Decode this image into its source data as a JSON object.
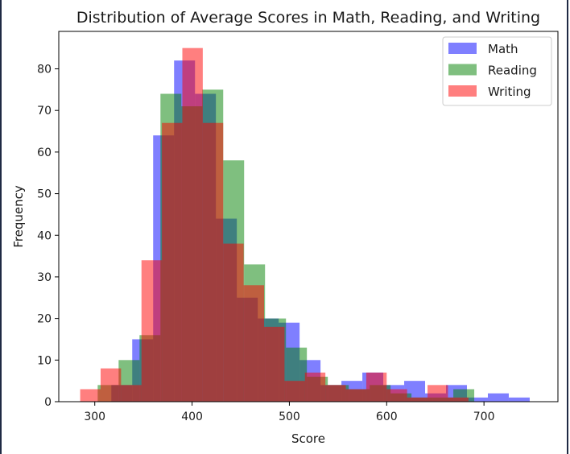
{
  "chart_data": {
    "type": "histogram",
    "title": "Distribution of Average Scores in Math, Reading, and Writing",
    "xlabel": "Score",
    "ylabel": "Frequency",
    "xlim": [
      263,
      776
    ],
    "ylim": [
      0,
      89
    ],
    "xticks": [
      300,
      400,
      500,
      600,
      700
    ],
    "yticks": [
      0,
      10,
      20,
      30,
      40,
      50,
      60,
      70,
      80
    ],
    "legend": {
      "position": "top-right",
      "entries": [
        "Math",
        "Reading",
        "Writing"
      ]
    },
    "series": [
      {
        "name": "Math",
        "color": "#0000ff",
        "alpha": 0.5,
        "bins": [
          [
            317,
            338.5,
            4
          ],
          [
            338.5,
            360,
            15
          ],
          [
            360,
            381.5,
            64
          ],
          [
            381.5,
            403,
            82
          ],
          [
            403,
            424.5,
            74
          ],
          [
            424.5,
            446,
            44
          ],
          [
            446,
            467.5,
            25
          ],
          [
            467.5,
            489,
            20
          ],
          [
            489,
            510.5,
            19
          ],
          [
            510.5,
            532,
            10
          ],
          [
            532,
            553.5,
            4
          ],
          [
            553.5,
            575,
            5
          ],
          [
            575,
            596.5,
            7
          ],
          [
            596.5,
            618,
            4
          ],
          [
            618,
            639.5,
            5
          ],
          [
            639.5,
            661,
            2
          ],
          [
            661,
            682.5,
            4
          ],
          [
            682.5,
            704,
            1
          ],
          [
            704,
            725.5,
            2
          ],
          [
            725.5,
            747,
            1
          ]
        ]
      },
      {
        "name": "Reading",
        "color": "#008000",
        "alpha": 0.5,
        "bins": [
          [
            303,
            324.5,
            4
          ],
          [
            324.5,
            346,
            10
          ],
          [
            346,
            367.5,
            16
          ],
          [
            367.5,
            389,
            74
          ],
          [
            389,
            410.5,
            71
          ],
          [
            410.5,
            432,
            75
          ],
          [
            432,
            453.5,
            58
          ],
          [
            453.5,
            475,
            33
          ],
          [
            475,
            496.5,
            20
          ],
          [
            496.5,
            518,
            13
          ],
          [
            518,
            539.5,
            6
          ],
          [
            539.5,
            561,
            4
          ],
          [
            561,
            582.5,
            3
          ],
          [
            582.5,
            604,
            4
          ],
          [
            604,
            625.5,
            2
          ],
          [
            625.5,
            647,
            1
          ],
          [
            647,
            668.5,
            1
          ],
          [
            668.5,
            690,
            3
          ]
        ]
      },
      {
        "name": "Writing",
        "color": "#ff0000",
        "alpha": 0.5,
        "bins": [
          [
            285,
            306,
            3
          ],
          [
            306,
            327,
            8
          ],
          [
            327,
            348,
            4
          ],
          [
            348,
            369,
            34
          ],
          [
            369,
            390,
            67
          ],
          [
            390,
            411,
            85
          ],
          [
            411,
            432,
            67
          ],
          [
            432,
            453,
            38
          ],
          [
            453,
            474,
            28
          ],
          [
            474,
            495,
            18
          ],
          [
            495,
            516,
            5
          ],
          [
            516,
            537,
            7
          ],
          [
            537,
            558,
            4
          ],
          [
            558,
            579,
            3
          ],
          [
            579,
            600,
            7
          ],
          [
            600,
            621,
            3
          ],
          [
            621,
            642,
            1
          ],
          [
            642,
            663,
            4
          ],
          [
            663,
            684,
            1
          ]
        ]
      }
    ]
  }
}
